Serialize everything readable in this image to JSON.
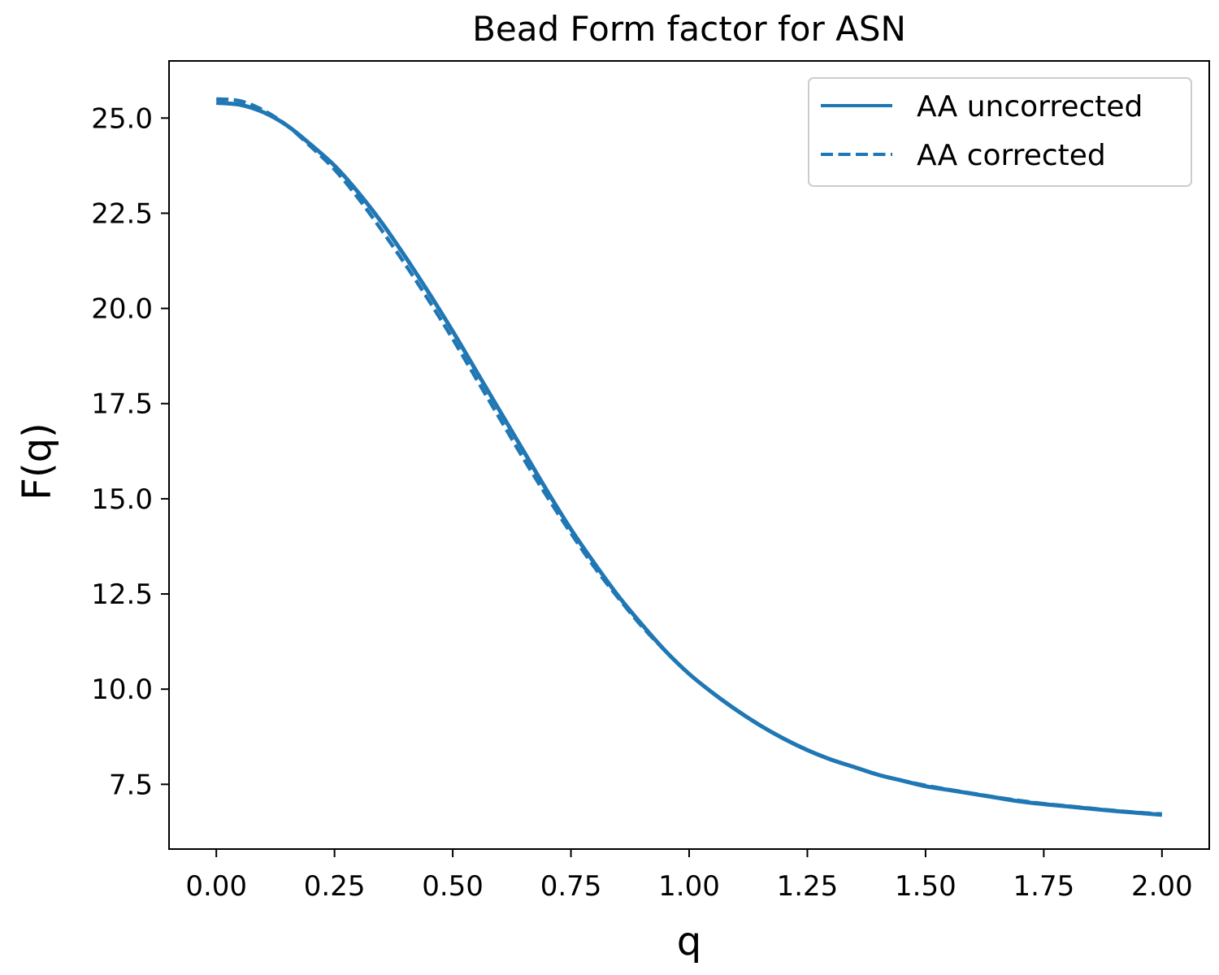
{
  "chart_data": {
    "type": "line",
    "title": "Bead Form factor for ASN",
    "xlabel": "q",
    "ylabel": "F(q)",
    "xlim": [
      -0.1,
      2.1
    ],
    "ylim": [
      5.8,
      26.5
    ],
    "x_ticks": [
      "0.00",
      "0.25",
      "0.50",
      "0.75",
      "1.00",
      "1.25",
      "1.50",
      "1.75",
      "2.00"
    ],
    "y_ticks": [
      "7.5",
      "10.0",
      "12.5",
      "15.0",
      "17.5",
      "20.0",
      "22.5",
      "25.0"
    ],
    "grid": false,
    "legend_position": "top-right",
    "line_color": "#1f77b4",
    "series": [
      {
        "name": "AA uncorrected",
        "style": "solid",
        "x": [
          0.0,
          0.05,
          0.1,
          0.15,
          0.2,
          0.25,
          0.3,
          0.35,
          0.4,
          0.45,
          0.5,
          0.55,
          0.6,
          0.65,
          0.7,
          0.75,
          0.8,
          0.85,
          0.9,
          0.95,
          1.0,
          1.05,
          1.1,
          1.15,
          1.2,
          1.25,
          1.3,
          1.35,
          1.4,
          1.45,
          1.5,
          1.55,
          1.6,
          1.65,
          1.7,
          1.75,
          1.8,
          1.85,
          1.9,
          1.95,
          2.0
        ],
        "y": [
          25.4,
          25.35,
          25.15,
          24.8,
          24.3,
          23.75,
          23.05,
          22.25,
          21.35,
          20.4,
          19.4,
          18.35,
          17.3,
          16.25,
          15.2,
          14.2,
          13.3,
          12.45,
          11.7,
          11.0,
          10.4,
          9.9,
          9.45,
          9.05,
          8.7,
          8.4,
          8.15,
          7.95,
          7.75,
          7.6,
          7.45,
          7.35,
          7.25,
          7.15,
          7.05,
          6.98,
          6.92,
          6.86,
          6.8,
          6.75,
          6.7
        ]
      },
      {
        "name": "AA corrected",
        "style": "dashed",
        "x": [
          0.0,
          0.05,
          0.1,
          0.15,
          0.2,
          0.25,
          0.3,
          0.35,
          0.4,
          0.45,
          0.5,
          0.55,
          0.6,
          0.65,
          0.7,
          0.75,
          0.8,
          0.85,
          0.9,
          0.95,
          1.0,
          1.05,
          1.1,
          1.15,
          1.2,
          1.25,
          1.3,
          1.35,
          1.4,
          1.45,
          1.5,
          1.55,
          1.6,
          1.65,
          1.7,
          1.75,
          1.8,
          1.85,
          1.9,
          1.95,
          2.0
        ],
        "y": [
          25.5,
          25.45,
          25.2,
          24.8,
          24.25,
          23.65,
          22.9,
          22.05,
          21.15,
          20.2,
          19.2,
          18.15,
          17.1,
          16.05,
          15.05,
          14.1,
          13.2,
          12.4,
          11.65,
          11.0,
          10.4,
          9.9,
          9.45,
          9.05,
          8.7,
          8.4,
          8.15,
          7.95,
          7.75,
          7.6,
          7.47,
          7.36,
          7.26,
          7.16,
          7.07,
          6.99,
          6.93,
          6.87,
          6.81,
          6.76,
          6.72
        ]
      }
    ]
  }
}
